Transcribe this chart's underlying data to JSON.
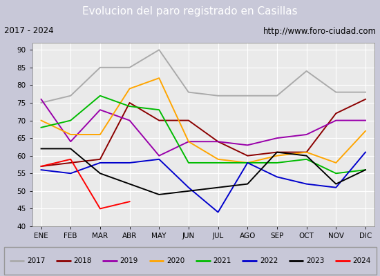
{
  "title": "Evolucion del paro registrado en Casillas",
  "subtitle_left": "2017 - 2024",
  "subtitle_right": "http://www.foro-ciudad.com",
  "months": [
    "ENE",
    "FEB",
    "MAR",
    "ABR",
    "MAY",
    "JUN",
    "JUL",
    "AGO",
    "SEP",
    "OCT",
    "NOV",
    "DIC"
  ],
  "ylim": [
    40,
    92
  ],
  "yticks": [
    40,
    45,
    50,
    55,
    60,
    65,
    70,
    75,
    80,
    85,
    90
  ],
  "series": {
    "2017": {
      "color": "#aaaaaa",
      "data": [
        75,
        77,
        85,
        85,
        90,
        78,
        77,
        77,
        77,
        84,
        78,
        78
      ]
    },
    "2018": {
      "color": "#8b0000",
      "data": [
        57,
        58,
        59,
        75,
        70,
        70,
        64,
        60,
        61,
        61,
        72,
        76
      ]
    },
    "2019": {
      "color": "#9900aa",
      "data": [
        76,
        64,
        73,
        70,
        60,
        64,
        64,
        63,
        65,
        66,
        70,
        70
      ]
    },
    "2020": {
      "color": "#ffa500",
      "data": [
        70,
        66,
        66,
        79,
        82,
        64,
        59,
        58,
        60,
        61,
        58,
        67
      ]
    },
    "2021": {
      "color": "#00bb00",
      "data": [
        68,
        70,
        77,
        74,
        73,
        58,
        58,
        58,
        58,
        59,
        55,
        56
      ]
    },
    "2022": {
      "color": "#0000cc",
      "data": [
        56,
        55,
        58,
        58,
        59,
        51,
        44,
        58,
        54,
        52,
        51,
        61
      ]
    },
    "2023": {
      "color": "#000000",
      "data": [
        62,
        62,
        55,
        52,
        49,
        50,
        51,
        52,
        61,
        60,
        52,
        56
      ]
    },
    "2024": {
      "color": "#ff0000",
      "data": [
        57,
        59,
        45,
        47,
        null,
        null,
        null,
        null,
        null,
        null,
        null,
        null
      ]
    }
  },
  "title_bg": "#5b8dd9",
  "subtitle_bg": "#e8e8e8",
  "plot_bg": "#eaeaea",
  "grid_color": "#ffffff",
  "legend_bg": "#f0f0f0",
  "border_color": "#999999"
}
